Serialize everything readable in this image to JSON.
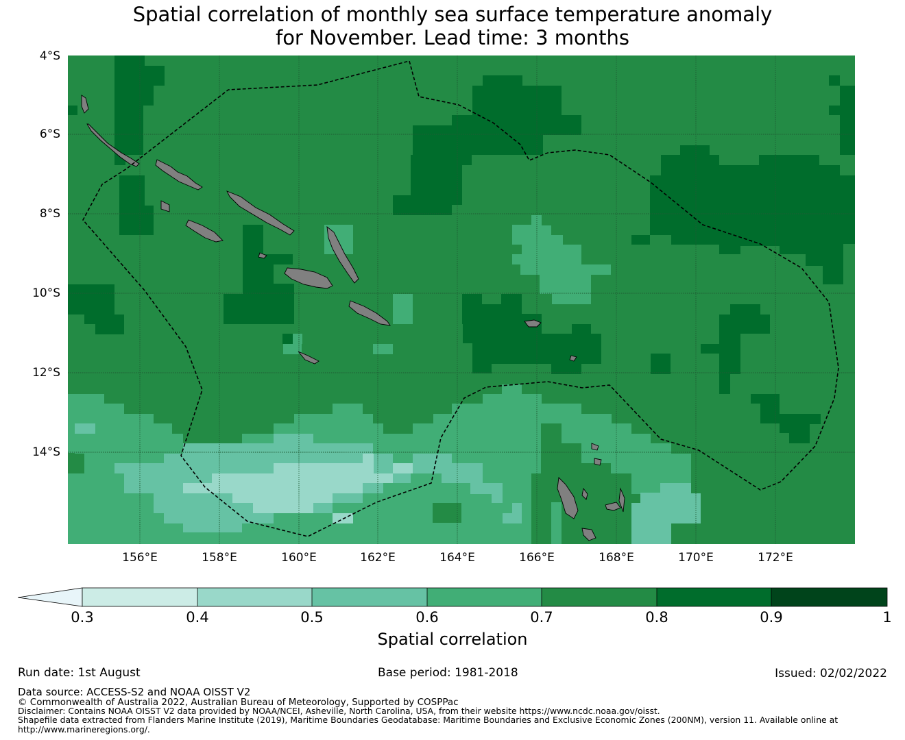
{
  "title": {
    "line1": "Spatial correlation of monthly sea surface temperature anomaly",
    "line2": "for November. Lead time: 3 months"
  },
  "map": {
    "lat_ticks": [
      "4°S",
      "6°S",
      "8°S",
      "10°S",
      "12°S",
      "14°S"
    ],
    "lon_ticks": [
      "156°E",
      "158°E",
      "160°E",
      "162°E",
      "164°E",
      "166°E",
      "168°E",
      "170°E",
      "172°E"
    ],
    "lon_range": [
      154.2,
      174.0
    ],
    "lat_range": [
      -4.0,
      -16.3
    ],
    "land_color": "#808080",
    "gridline_color": "#1f5a33"
  },
  "colorbar": {
    "label": "Spatial correlation",
    "ticks": [
      "0.3",
      "0.4",
      "0.5",
      "0.6",
      "0.7",
      "0.8",
      "0.9",
      "1"
    ],
    "colors": [
      "#e8f5f9",
      "#ccece6",
      "#99d8c9",
      "#66c2a4",
      "#41ae76",
      "#238b45",
      "#006d2c",
      "#00441b"
    ],
    "extend": "min"
  },
  "footer": {
    "run_date": "Run date: 1st August",
    "base_period": "Base period: 1981-2018",
    "issued": "Issued: 02/02/2022",
    "data_source": "Data source: ACCESS-S2 and NOAA OISST V2",
    "copyright": "© Commonwealth of Australia 2022, Australian Bureau of Meteorology, Supported by COSPPac",
    "disclaimer": "Disclaimer: Contains NOAA OISST V2 data provided by NOAA/NCEI, Asheville, North Carolina, USA, from their website https://www.ncdc.noaa.gov/oisst.",
    "shapefile_line1": "Shapefile data extracted from Flanders Marine Institute (2019), Maritime Boundaries Geodatabase: Maritime Boundaries and Exclusive Economic Zones (200NM), version 11. Available online at",
    "shapefile_line2": "http://www.marineregions.org/."
  }
}
